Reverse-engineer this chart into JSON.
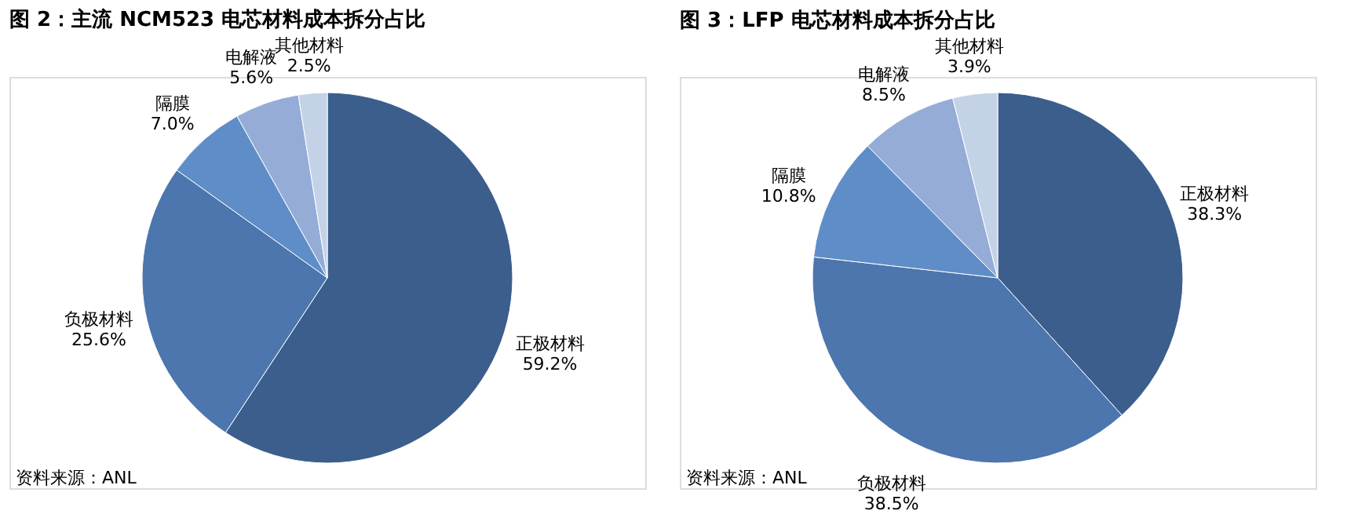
{
  "chart_data": [
    {
      "type": "pie",
      "title": "图 2：主流 NCM523 电芯材料成本拆分占比",
      "categories": [
        "正极材料",
        "负极材料",
        "隔膜",
        "电解液",
        "其他材料"
      ],
      "values": [
        59.2,
        25.6,
        7.0,
        5.6,
        2.5
      ],
      "value_labels": [
        "59.2%",
        "25.6%",
        "7.0%",
        "5.6%",
        "2.5%"
      ],
      "colors": [
        "#3b5e8c",
        "#4c76ad",
        "#5f8dc8",
        "#95add6",
        "#c4d2e8"
      ],
      "annotations": [
        "资料来源：ANL"
      ]
    },
    {
      "type": "pie",
      "title": "图 3：LFP 电芯材料成本拆分占比",
      "categories": [
        "正极材料",
        "负极材料",
        "隔膜",
        "电解液",
        "其他材料"
      ],
      "values": [
        38.3,
        38.5,
        10.8,
        8.5,
        3.9
      ],
      "value_labels": [
        "38.3%",
        "38.5%",
        "10.8%",
        "8.5%",
        "3.9%"
      ],
      "colors": [
        "#3b5e8c",
        "#4c76ad",
        "#5f8dc8",
        "#95add6",
        "#c4d2e8"
      ],
      "annotations": [
        "资料来源：ANL"
      ]
    }
  ]
}
